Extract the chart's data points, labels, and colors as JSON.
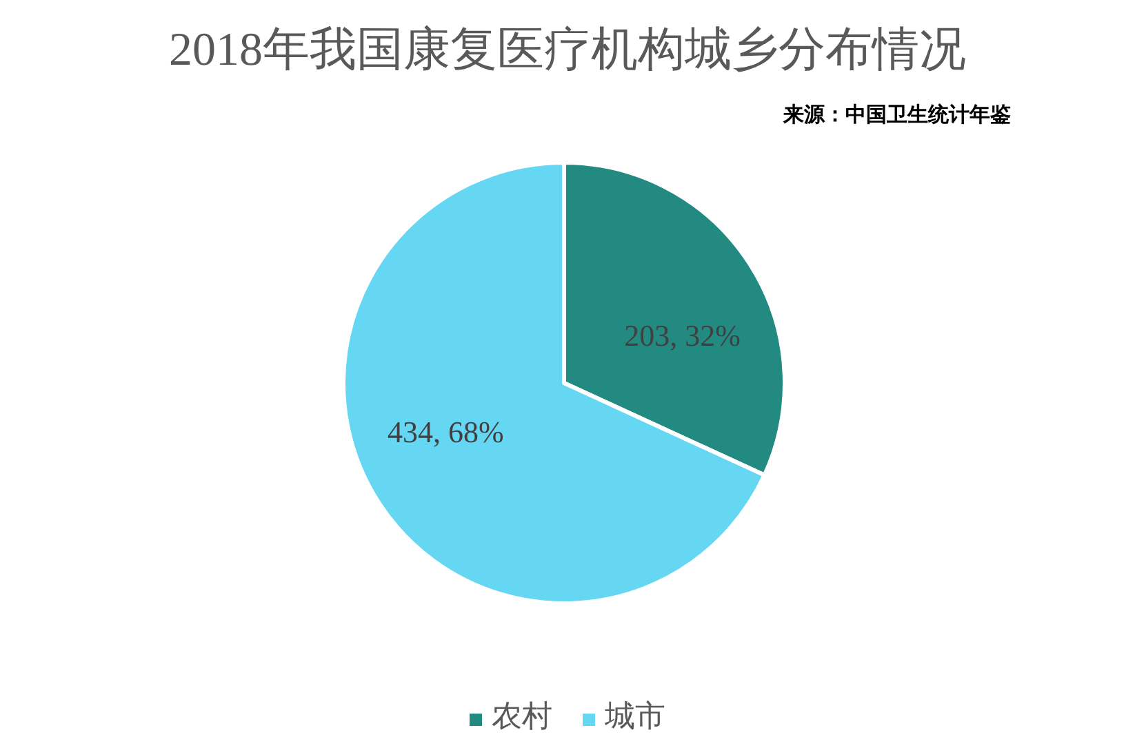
{
  "chart_data": {
    "type": "pie",
    "title": "2018年我国康复医疗机构城乡分布情况",
    "annotations": [
      "来源：中国卫生统计年鉴"
    ],
    "categories": [
      "农村",
      "城市"
    ],
    "values": [
      203,
      434
    ],
    "colors": [
      "#238a82",
      "#66d7f3"
    ],
    "value_labels": [
      "203, 32%",
      "434, 68%"
    ],
    "legend": "bottom"
  }
}
